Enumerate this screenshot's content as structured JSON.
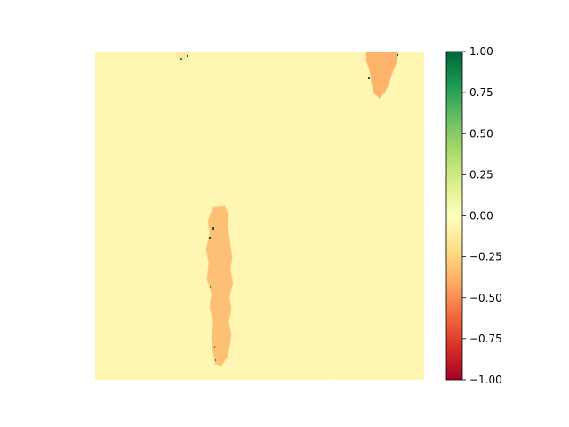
{
  "chart_data": {
    "type": "heatmap",
    "title": "",
    "xlabel": "",
    "ylabel": "",
    "axes_visible": false,
    "colormap": "RdYlGn",
    "colormap_stops": [
      "#a50026",
      "#d73027",
      "#f46d43",
      "#fdae61",
      "#fee08b",
      "#ffffbf",
      "#d9ef8b",
      "#a6d96a",
      "#66bd63",
      "#1a9850",
      "#006837"
    ],
    "background_value": -0.05,
    "colorbar": {
      "range": [
        -1.0,
        1.0
      ],
      "ticks": [
        1.0,
        0.75,
        0.5,
        0.25,
        0.0,
        -0.25,
        -0.5,
        -0.75,
        -1.0
      ],
      "tick_labels": [
        "1.00",
        "0.75",
        "0.50",
        "0.25",
        "0.00",
        "−0.25",
        "−0.50",
        "−0.75",
        "−1.00"
      ]
    },
    "regions": [
      {
        "name": "lower-left-streak",
        "value": -0.35
      },
      {
        "name": "top-right-streak",
        "value": -0.4
      },
      {
        "name": "top-center-spot",
        "value": -0.15
      }
    ]
  }
}
